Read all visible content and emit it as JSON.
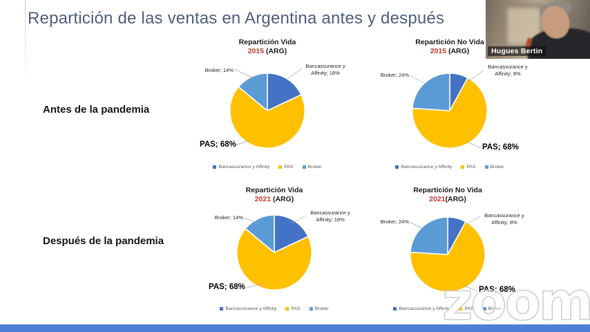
{
  "slide": {
    "title": "Repartición de las ventas en Argentina antes y después",
    "row_labels": [
      "Antes de la pandemia",
      "Después de la pandemia"
    ]
  },
  "webcam": {
    "name": "Hugues Bertin"
  },
  "watermark": "zoom",
  "colors": {
    "bancassurance": "#4472C4",
    "pas": "#FFC000",
    "broker": "#5B9BD5",
    "title_text": "#4E5D7C",
    "year_text": "#C0392B",
    "bottom_bar": "#4C80D6"
  },
  "chart_data": [
    {
      "type": "pie",
      "title": "Repartición Vida",
      "year": "2015",
      "suffix": " (ARG)",
      "slices": [
        {
          "label": "Bancassurance y Affinity",
          "value": 18,
          "color": "#4472C4"
        },
        {
          "label": "PAS",
          "value": 68,
          "color": "#FFC000"
        },
        {
          "label": "Broker",
          "value": 14,
          "color": "#5B9BD5"
        }
      ],
      "callouts": {
        "broker": "Broker; 14%",
        "banc_line1": "Bancassurance y",
        "banc_line2": "Affinity; 18%",
        "pas": "PAS; 68%"
      },
      "legend": [
        "Bancassurance y Affinity",
        "PAS",
        "Broker"
      ]
    },
    {
      "type": "pie",
      "title": "Repartición No Vida",
      "year": "2015",
      "suffix": " (ARG)",
      "slices": [
        {
          "label": "Bancassurance y Affinity",
          "value": 8,
          "color": "#4472C4"
        },
        {
          "label": "PAS",
          "value": 68,
          "color": "#FFC000"
        },
        {
          "label": "Broker",
          "value": 24,
          "color": "#5B9BD5"
        }
      ],
      "callouts": {
        "broker": "Broker; 24%",
        "banc_line1": "Bancassurance y",
        "banc_line2": "Affinity; 8%",
        "pas": "PAS; 68%"
      },
      "legend": [
        "Bancassurance y Affinity",
        "PAS",
        "Broker"
      ]
    },
    {
      "type": "pie",
      "title": "Repartición Vida",
      "year": "2021",
      "suffix": " (ARG)",
      "slices": [
        {
          "label": "Bancassurance y Affinity",
          "value": 18,
          "color": "#4472C4"
        },
        {
          "label": "PAS",
          "value": 68,
          "color": "#FFC000"
        },
        {
          "label": "Broker",
          "value": 14,
          "color": "#5B9BD5"
        }
      ],
      "callouts": {
        "broker": "Broker; 14%",
        "banc_line1": "Bancassurance y",
        "banc_line2": "Affinity; 18%",
        "pas": "PAS; 68%"
      },
      "legend": [
        "Bancassurance y Affinity",
        "PAS",
        "Broker"
      ]
    },
    {
      "type": "pie",
      "title": "Repartición No Vida",
      "year": "2021",
      "suffix": "(ARG)",
      "slices": [
        {
          "label": "Bancassurance y Affinity",
          "value": 8,
          "color": "#4472C4"
        },
        {
          "label": "PAS",
          "value": 68,
          "color": "#FFC000"
        },
        {
          "label": "Broker",
          "value": 24,
          "color": "#5B9BD5"
        }
      ],
      "callouts": {
        "broker": "Broker; 24%",
        "banc_line1": "Bancassurance y",
        "banc_line2": "Affinity; 8%",
        "pas": "PAS; 68%"
      },
      "legend": [
        "Bancassurance y Affinity",
        "PAS",
        "Broker"
      ]
    }
  ]
}
